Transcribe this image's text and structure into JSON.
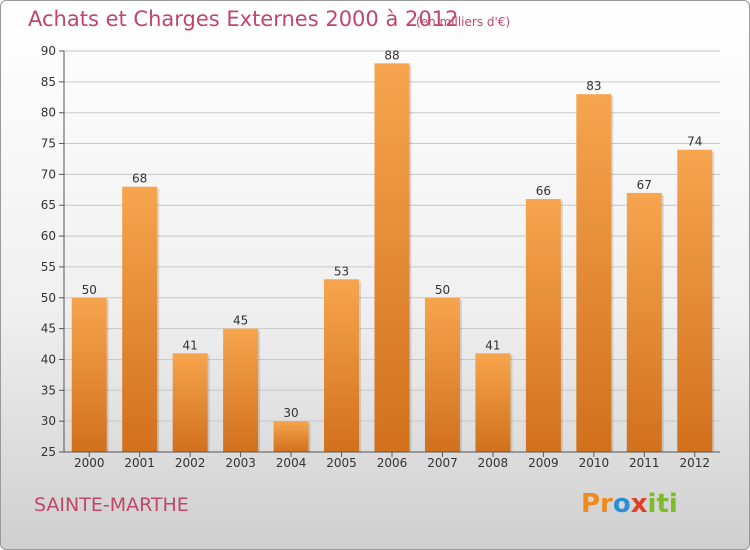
{
  "title": "Achats et Charges Externes 2000 à 2012",
  "subtitle": "(en milliers d'€)",
  "place": "SAINTE-MARTHE",
  "logo": {
    "p1": "Pr",
    "p2": "o",
    "p3": "x",
    "p4": "iti"
  },
  "colors": {
    "title": "#c0466c",
    "bar_top": "#f6a54e",
    "bar_bottom": "#d2701c",
    "grid": "#c8c8c8"
  },
  "chart_data": {
    "type": "bar",
    "title": "Achats et Charges Externes 2000 à 2012",
    "subtitle": "(en milliers d'€)",
    "categories": [
      "2000",
      "2001",
      "2002",
      "2003",
      "2004",
      "2005",
      "2006",
      "2007",
      "2008",
      "2009",
      "2010",
      "2011",
      "2012"
    ],
    "values": [
      50,
      68,
      41,
      45,
      30,
      53,
      88,
      50,
      41,
      66,
      83,
      67,
      74
    ],
    "ylim": [
      25,
      90
    ],
    "yticks": [
      25,
      30,
      35,
      40,
      45,
      50,
      55,
      60,
      65,
      70,
      75,
      80,
      85,
      90
    ],
    "grid": true,
    "xlabel": "",
    "ylabel": ""
  }
}
